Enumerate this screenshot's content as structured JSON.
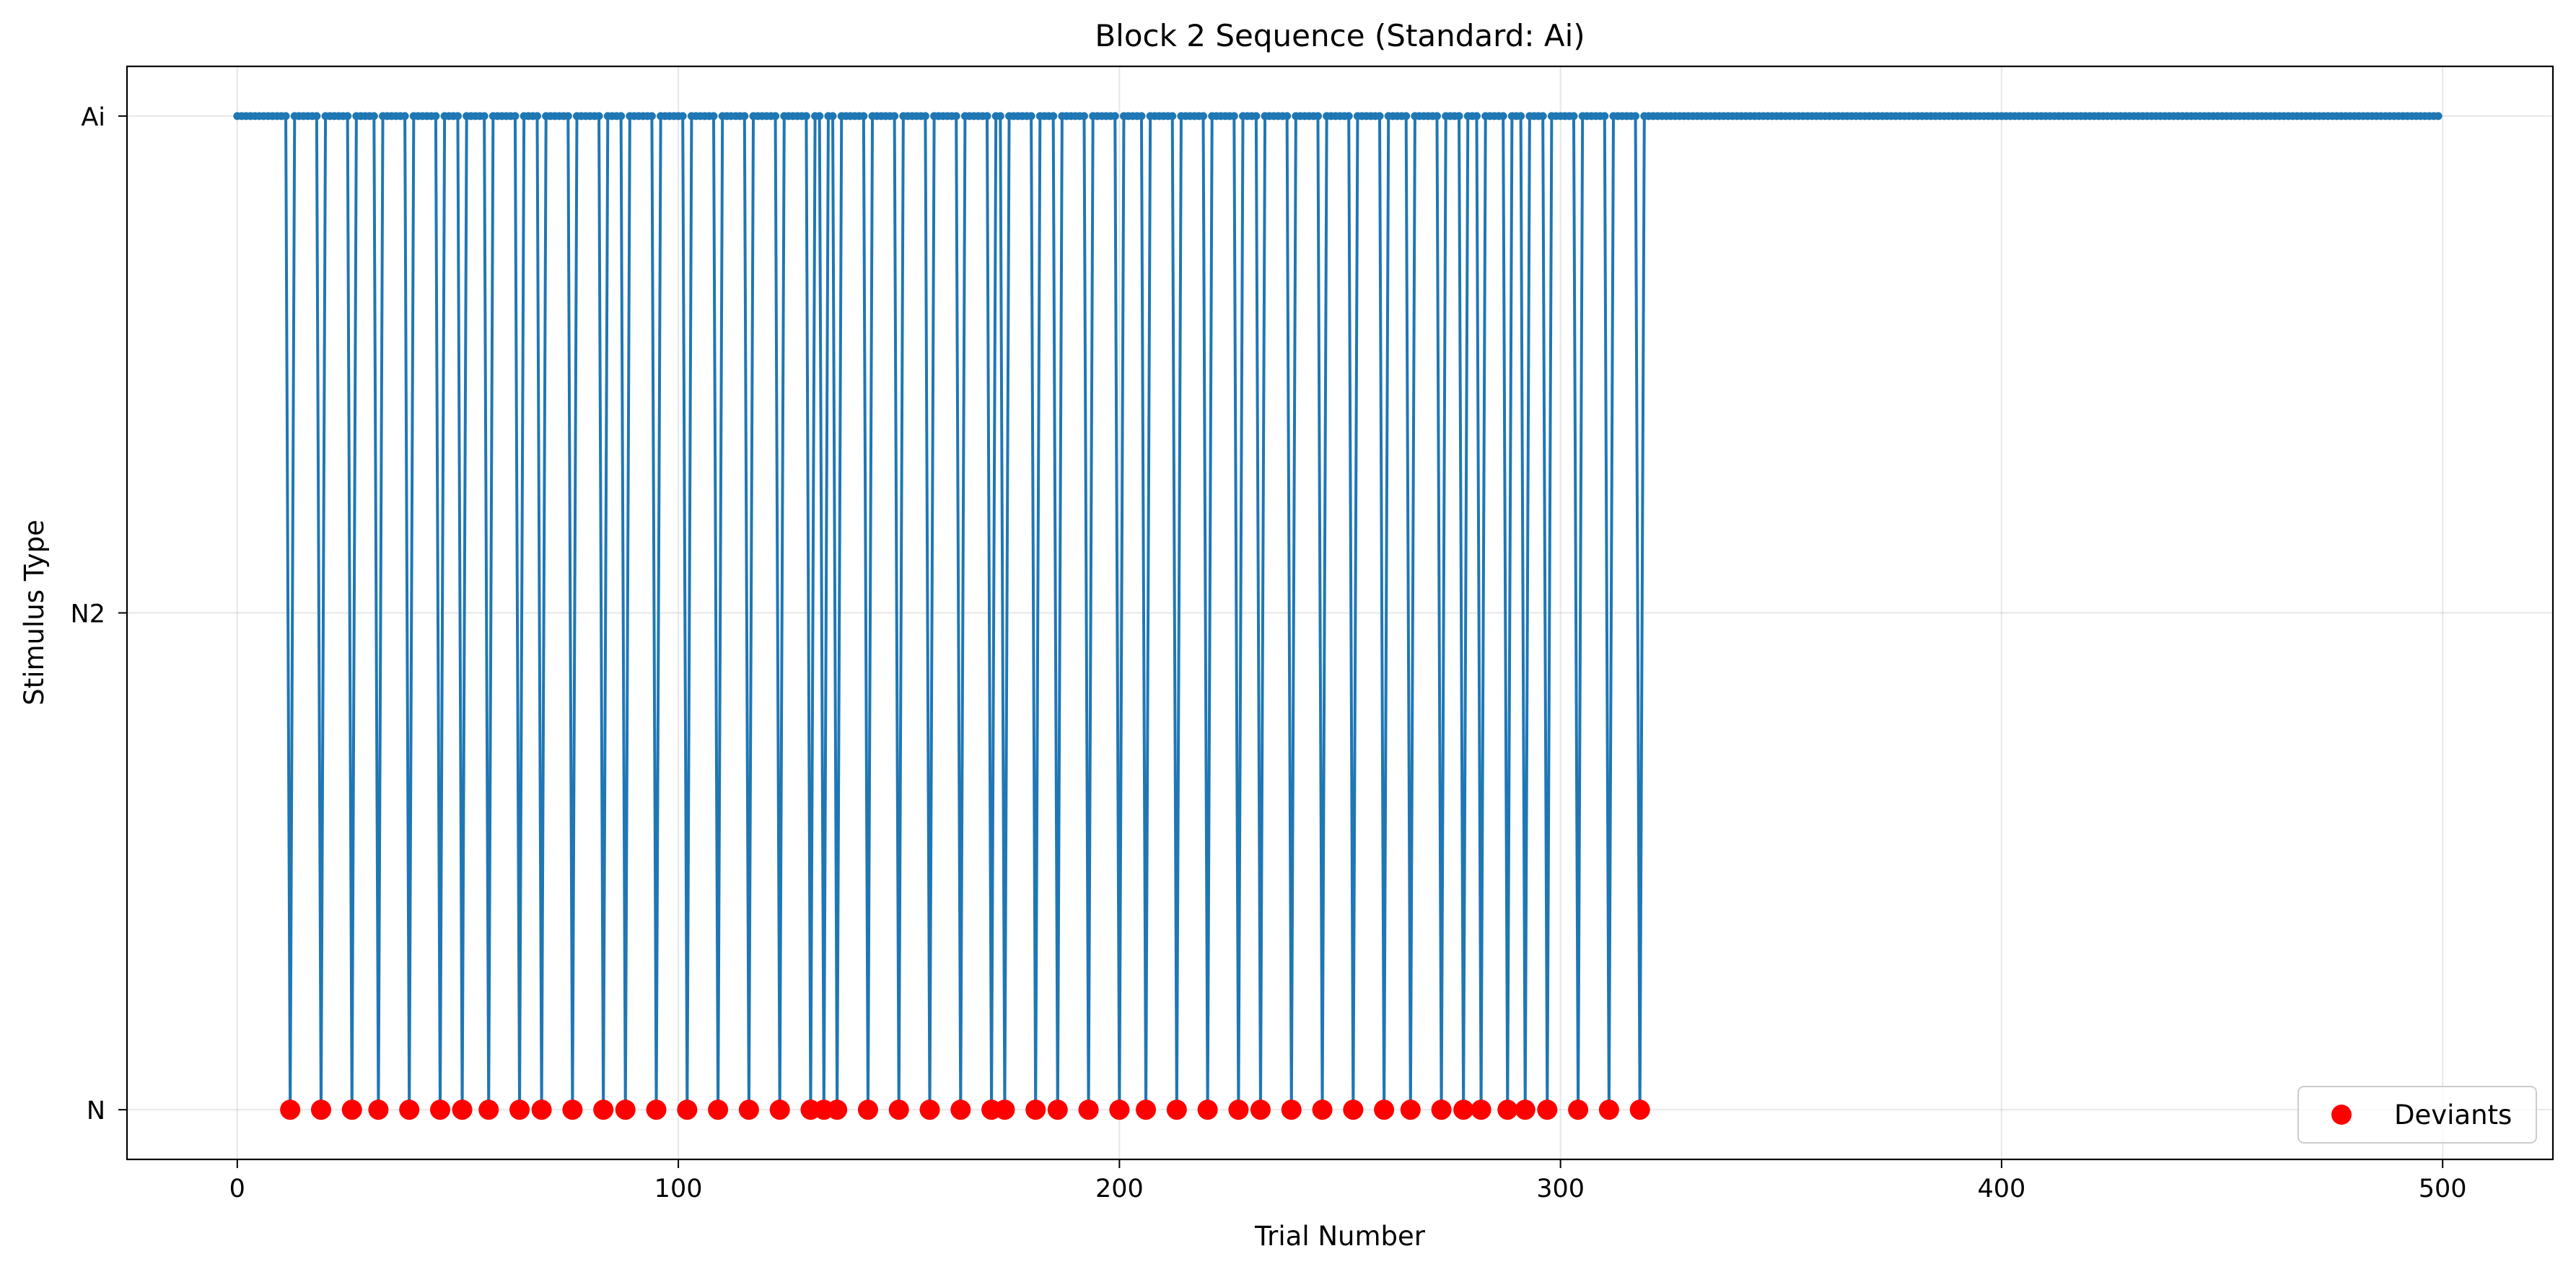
{
  "chart_data": {
    "type": "line",
    "title": "Block 2 Sequence (Standard: Ai)",
    "xlabel": "Trial Number",
    "ylabel": "Stimulus Type",
    "xlim": [
      -25,
      525
    ],
    "x_ticks": [
      0,
      100,
      200,
      300,
      400,
      500
    ],
    "y_categories": [
      "N",
      "N2",
      "Ai"
    ],
    "ylim": [
      -0.1,
      2.1
    ],
    "grid": true,
    "legend_position": "lower-right",
    "n_trials": 500,
    "standard_value": "Ai",
    "deviant_value": "N",
    "deviant_trials": [
      12,
      19,
      26,
      32,
      39,
      46,
      51,
      57,
      64,
      69,
      76,
      83,
      88,
      95,
      102,
      109,
      116,
      123,
      130,
      133,
      136,
      143,
      150,
      157,
      164,
      171,
      174,
      181,
      186,
      193,
      200,
      206,
      213,
      220,
      227,
      232,
      239,
      246,
      253,
      260,
      266,
      273,
      278,
      282,
      288,
      292,
      297,
      304,
      311,
      318
    ],
    "series": [
      {
        "name": "",
        "kind": "line-with-markers",
        "color": "#1f77b4",
        "description_values": "Ai for every trial 0-499 except deviant_trials which are N"
      },
      {
        "name": "Deviants",
        "kind": "scatter",
        "color": "#ff0000",
        "y": "N",
        "x_ref": "deviant_trials"
      }
    ],
    "legend": [
      {
        "label": "Deviants",
        "color": "#ff0000"
      }
    ]
  }
}
